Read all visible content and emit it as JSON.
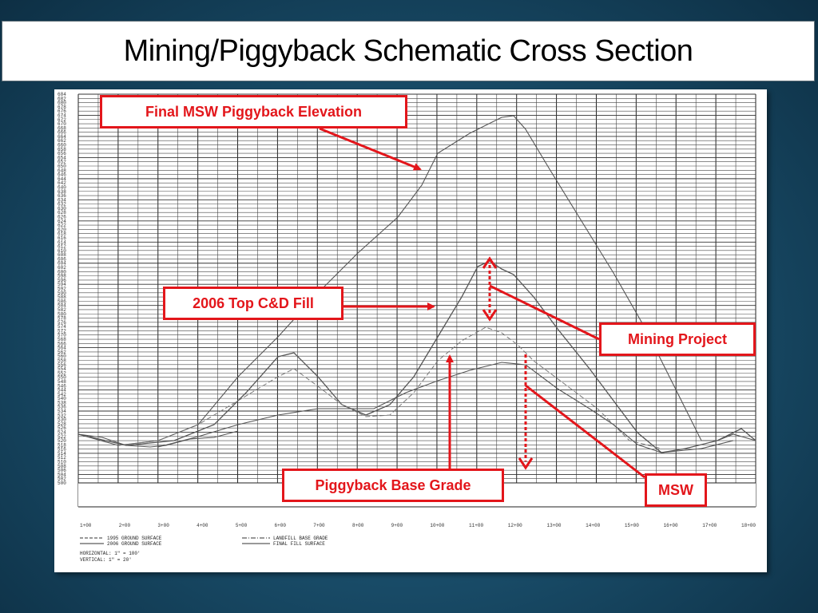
{
  "title": "Mining/Piggyback Schematic Cross Section",
  "callouts": {
    "final_msw": "Final MSW Piggyback Elevation",
    "top_cd": "2006 Top C&D Fill",
    "mining": "Mining Project",
    "base_grade": "Piggyback Base Grade",
    "msw": "MSW"
  },
  "figure": {
    "y_ticks": [
      "684",
      "682",
      "680",
      "678",
      "676",
      "674",
      "672",
      "670",
      "668",
      "666",
      "664",
      "662",
      "660",
      "658",
      "656",
      "654",
      "652",
      "650",
      "648",
      "646",
      "644",
      "642",
      "640",
      "638",
      "636",
      "634",
      "632",
      "630",
      "628",
      "626",
      "624",
      "622",
      "620",
      "618",
      "616",
      "614",
      "612",
      "610",
      "608",
      "606",
      "604",
      "602",
      "600",
      "598",
      "596",
      "594",
      "592",
      "590",
      "588",
      "586",
      "584",
      "582",
      "580",
      "578",
      "576",
      "574",
      "572",
      "570",
      "568",
      "566",
      "564",
      "562",
      "560",
      "558",
      "556",
      "554",
      "552",
      "550",
      "548",
      "546",
      "544",
      "542",
      "540",
      "538",
      "536",
      "534",
      "532",
      "530",
      "528",
      "526",
      "524",
      "522",
      "520",
      "518",
      "516",
      "514",
      "512",
      "510",
      "508",
      "506",
      "504",
      "502",
      "500"
    ],
    "x_ticks": [
      "1+00",
      "2+00",
      "3+00",
      "4+00",
      "5+00",
      "6+00",
      "7+00",
      "8+00",
      "9+00",
      "10+00",
      "11+00",
      "12+00",
      "13+00",
      "14+00",
      "15+00",
      "16+00",
      "17+00",
      "18+00"
    ],
    "legend": {
      "l1": "1995 GROUND SURFACE",
      "l2": "2006 GROUND SURFACE",
      "l3": "LANDFILL BASE GRADE",
      "l4": "FINAL FILL SURFACE",
      "scale_h": "HORIZONTAL:  1\" = 100'",
      "scale_v": "VERTICAL:  1\" = 20'"
    }
  }
}
